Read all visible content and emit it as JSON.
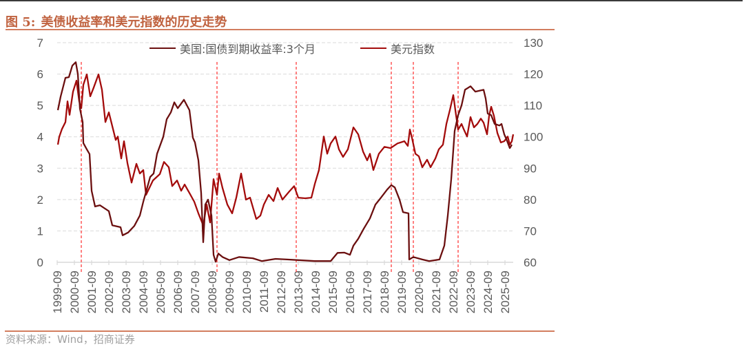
{
  "header": {
    "figure_label": "图 5:",
    "title": "美债收益率和美元指数的历史走势"
  },
  "source": "资料来源：Wind，招商证券",
  "chart_data": {
    "type": "line",
    "title": "美债收益率和美元指数的历史走势",
    "xlabel": "",
    "ylabel_left": "",
    "ylabel_right": "",
    "grid": true,
    "legend": {
      "position": "top",
      "entries": [
        "美国:国债到期收益率:3个月",
        "美元指数"
      ]
    },
    "x_ticks": [
      "1999-09",
      "2000-09",
      "2001-09",
      "2002-09",
      "2003-09",
      "2004-09",
      "2005-09",
      "2006-09",
      "2007-09",
      "2008-09",
      "2009-09",
      "2010-09",
      "2011-09",
      "2012-09",
      "2013-09",
      "2014-09",
      "2015-09",
      "2016-09",
      "2017-09",
      "2018-09",
      "2019-09",
      "2020-09",
      "2021-09",
      "2022-09",
      "2023-09",
      "2024-09",
      "2025-09"
    ],
    "x_range_decimal_year": [
      1999.67,
      2026.15
    ],
    "y_left": {
      "ticks": [
        0,
        1,
        2,
        3,
        4,
        5,
        6,
        7
      ],
      "range": [
        0,
        7
      ]
    },
    "y_right": {
      "ticks": [
        60,
        70,
        80,
        90,
        100,
        110,
        120,
        130
      ],
      "range": [
        60,
        130
      ]
    },
    "series": [
      {
        "name": "美国:国债到期收益率:3个月",
        "axis": "left",
        "color": "#6B0F0F",
        "points": [
          [
            1999.71,
            4.85
          ],
          [
            1999.87,
            5.28
          ],
          [
            2000.15,
            5.88
          ],
          [
            2000.35,
            5.9
          ],
          [
            2000.55,
            6.27
          ],
          [
            2000.75,
            6.38
          ],
          [
            2000.87,
            6.0
          ],
          [
            2000.99,
            4.9
          ],
          [
            2001.15,
            4.47
          ],
          [
            2001.19,
            3.8
          ],
          [
            2001.39,
            3.6
          ],
          [
            2001.55,
            3.45
          ],
          [
            2001.67,
            2.28
          ],
          [
            2001.87,
            1.78
          ],
          [
            2002.15,
            1.82
          ],
          [
            2002.67,
            1.63
          ],
          [
            2002.87,
            1.18
          ],
          [
            2003.35,
            1.12
          ],
          [
            2003.47,
            0.86
          ],
          [
            2003.79,
            0.95
          ],
          [
            2004.15,
            1.16
          ],
          [
            2004.47,
            1.49
          ],
          [
            2004.67,
            1.93
          ],
          [
            2005.07,
            2.72
          ],
          [
            2005.27,
            2.83
          ],
          [
            2005.47,
            3.46
          ],
          [
            2005.83,
            4.0
          ],
          [
            2006.03,
            4.56
          ],
          [
            2006.27,
            4.78
          ],
          [
            2006.47,
            5.1
          ],
          [
            2006.67,
            4.91
          ],
          [
            2007.03,
            5.18
          ],
          [
            2007.35,
            4.85
          ],
          [
            2007.55,
            3.97
          ],
          [
            2007.67,
            3.82
          ],
          [
            2007.87,
            3.25
          ],
          [
            2008.03,
            2.21
          ],
          [
            2008.15,
            0.64
          ],
          [
            2008.27,
            1.84
          ],
          [
            2008.43,
            2.0
          ],
          [
            2008.63,
            1.49
          ],
          [
            2008.75,
            0.24
          ],
          [
            2008.87,
            0.02
          ],
          [
            2009.03,
            0.28
          ],
          [
            2009.27,
            0.17
          ],
          [
            2009.67,
            0.07
          ],
          [
            2010.23,
            0.17
          ],
          [
            2011.03,
            0.13
          ],
          [
            2011.55,
            0.04
          ],
          [
            2012.35,
            0.11
          ],
          [
            2013.03,
            0.09
          ],
          [
            2013.67,
            0.07
          ],
          [
            2014.63,
            0.04
          ],
          [
            2015.55,
            0.04
          ],
          [
            2015.95,
            0.3
          ],
          [
            2016.35,
            0.31
          ],
          [
            2016.67,
            0.24
          ],
          [
            2016.87,
            0.53
          ],
          [
            2017.15,
            0.75
          ],
          [
            2017.47,
            1.07
          ],
          [
            2017.83,
            1.4
          ],
          [
            2018.15,
            1.84
          ],
          [
            2018.47,
            2.06
          ],
          [
            2018.83,
            2.32
          ],
          [
            2019.07,
            2.46
          ],
          [
            2019.27,
            2.39
          ],
          [
            2019.55,
            2.0
          ],
          [
            2019.75,
            1.6
          ],
          [
            2020.07,
            1.56
          ],
          [
            2020.11,
            0.09
          ],
          [
            2020.35,
            0.17
          ],
          [
            2020.87,
            0.09
          ],
          [
            2021.27,
            0.04
          ],
          [
            2021.87,
            0.09
          ],
          [
            2022.15,
            0.53
          ],
          [
            2022.35,
            1.49
          ],
          [
            2022.55,
            2.65
          ],
          [
            2022.75,
            4.19
          ],
          [
            2022.95,
            4.69
          ],
          [
            2023.15,
            5.0
          ],
          [
            2023.35,
            5.5
          ],
          [
            2023.67,
            5.61
          ],
          [
            2023.95,
            5.44
          ],
          [
            2024.43,
            5.5
          ],
          [
            2024.55,
            5.22
          ],
          [
            2024.67,
            4.74
          ],
          [
            2024.87,
            4.69
          ],
          [
            2025.07,
            4.41
          ],
          [
            2025.35,
            4.36
          ],
          [
            2025.47,
            4.41
          ],
          [
            2025.63,
            4.08
          ],
          [
            2025.75,
            3.93
          ],
          [
            2025.95,
            3.64
          ],
          [
            2026.07,
            3.75
          ]
        ]
      },
      {
        "name": "美元指数",
        "axis": "right",
        "color": "#A30B0B",
        "points": [
          [
            1999.71,
            97.5
          ],
          [
            1999.79,
            100
          ],
          [
            1999.95,
            102.5
          ],
          [
            2000.15,
            104.7
          ],
          [
            2000.27,
            111.3
          ],
          [
            2000.39,
            107
          ],
          [
            2000.59,
            114.4
          ],
          [
            2000.79,
            117.9
          ],
          [
            2000.95,
            111.3
          ],
          [
            2001.07,
            109.1
          ],
          [
            2001.19,
            116.6
          ],
          [
            2001.39,
            119.9
          ],
          [
            2001.59,
            112.9
          ],
          [
            2001.79,
            115.7
          ],
          [
            2002.07,
            119.9
          ],
          [
            2002.27,
            115
          ],
          [
            2002.47,
            104.7
          ],
          [
            2002.67,
            107.8
          ],
          [
            2003.07,
            99
          ],
          [
            2003.19,
            100.1
          ],
          [
            2003.39,
            93.1
          ],
          [
            2003.55,
            98.6
          ],
          [
            2003.75,
            91.6
          ],
          [
            2003.99,
            85.4
          ],
          [
            2004.27,
            91.4
          ],
          [
            2004.47,
            88.3
          ],
          [
            2004.67,
            89.4
          ],
          [
            2004.83,
            81.5
          ],
          [
            2005.23,
            86.1
          ],
          [
            2005.63,
            88.1
          ],
          [
            2005.87,
            92
          ],
          [
            2006.15,
            90.3
          ],
          [
            2006.35,
            84.3
          ],
          [
            2006.63,
            86.1
          ],
          [
            2006.87,
            82.8
          ],
          [
            2007.07,
            84.8
          ],
          [
            2007.35,
            82.1
          ],
          [
            2007.63,
            79.3
          ],
          [
            2007.87,
            75.6
          ],
          [
            2008.15,
            71.8
          ],
          [
            2008.35,
            78.4
          ],
          [
            2008.55,
            72.7
          ],
          [
            2008.75,
            86.5
          ],
          [
            2008.95,
            81.5
          ],
          [
            2009.07,
            88.3
          ],
          [
            2009.27,
            83.7
          ],
          [
            2009.55,
            78.4
          ],
          [
            2009.83,
            75.6
          ],
          [
            2010.07,
            80.6
          ],
          [
            2010.35,
            88.3
          ],
          [
            2010.63,
            80
          ],
          [
            2010.87,
            80.6
          ],
          [
            2011.23,
            73.8
          ],
          [
            2011.47,
            74.9
          ],
          [
            2011.67,
            78.4
          ],
          [
            2011.95,
            81.5
          ],
          [
            2012.23,
            79.5
          ],
          [
            2012.47,
            83.7
          ],
          [
            2012.75,
            80
          ],
          [
            2013.15,
            82.6
          ],
          [
            2013.43,
            84.3
          ],
          [
            2013.67,
            80.6
          ],
          [
            2014.07,
            80.4
          ],
          [
            2014.43,
            80.6
          ],
          [
            2014.63,
            85
          ],
          [
            2014.87,
            89.4
          ],
          [
            2015.15,
            100.1
          ],
          [
            2015.35,
            94.6
          ],
          [
            2015.55,
            97.9
          ],
          [
            2015.83,
            100.1
          ],
          [
            2016.03,
            96
          ],
          [
            2016.27,
            93.6
          ],
          [
            2016.55,
            96
          ],
          [
            2016.87,
            103
          ],
          [
            2017.15,
            100.8
          ],
          [
            2017.43,
            95.3
          ],
          [
            2017.67,
            92.5
          ],
          [
            2017.83,
            94.6
          ],
          [
            2018.03,
            89.4
          ],
          [
            2018.35,
            94.6
          ],
          [
            2018.67,
            96.8
          ],
          [
            2019.03,
            96.4
          ],
          [
            2019.43,
            97.9
          ],
          [
            2019.83,
            98.6
          ],
          [
            2020.03,
            97.1
          ],
          [
            2020.15,
            102.3
          ],
          [
            2020.27,
            99.7
          ],
          [
            2020.47,
            94.6
          ],
          [
            2020.67,
            93.8
          ],
          [
            2020.87,
            90.3
          ],
          [
            2021.15,
            92.7
          ],
          [
            2021.35,
            90.3
          ],
          [
            2021.63,
            93.1
          ],
          [
            2021.83,
            96
          ],
          [
            2022.07,
            97.5
          ],
          [
            2022.27,
            104.1
          ],
          [
            2022.47,
            108.5
          ],
          [
            2022.67,
            113.3
          ],
          [
            2022.83,
            106.9
          ],
          [
            2022.95,
            102.3
          ],
          [
            2023.15,
            104.1
          ],
          [
            2023.27,
            102.5
          ],
          [
            2023.47,
            100.1
          ],
          [
            2023.67,
            106.3
          ],
          [
            2023.87,
            103
          ],
          [
            2024.07,
            104.1
          ],
          [
            2024.27,
            105.8
          ],
          [
            2024.43,
            104.5
          ],
          [
            2024.63,
            100.8
          ],
          [
            2024.75,
            106.7
          ],
          [
            2024.87,
            109.6
          ],
          [
            2025.03,
            106.7
          ],
          [
            2025.23,
            101.2
          ],
          [
            2025.43,
            98.2
          ],
          [
            2025.63,
            98.6
          ],
          [
            2025.83,
            100.1
          ],
          [
            2025.95,
            97.5
          ],
          [
            2026.07,
            98.6
          ],
          [
            2026.15,
            100.8
          ]
        ]
      }
    ],
    "annotations": {
      "vertical_dashed_lines_decimal_year": [
        2001.07,
        2008.95,
        2013.55,
        2019.07,
        2020.35,
        2022.95
      ],
      "color": "#FF3B3B"
    }
  }
}
